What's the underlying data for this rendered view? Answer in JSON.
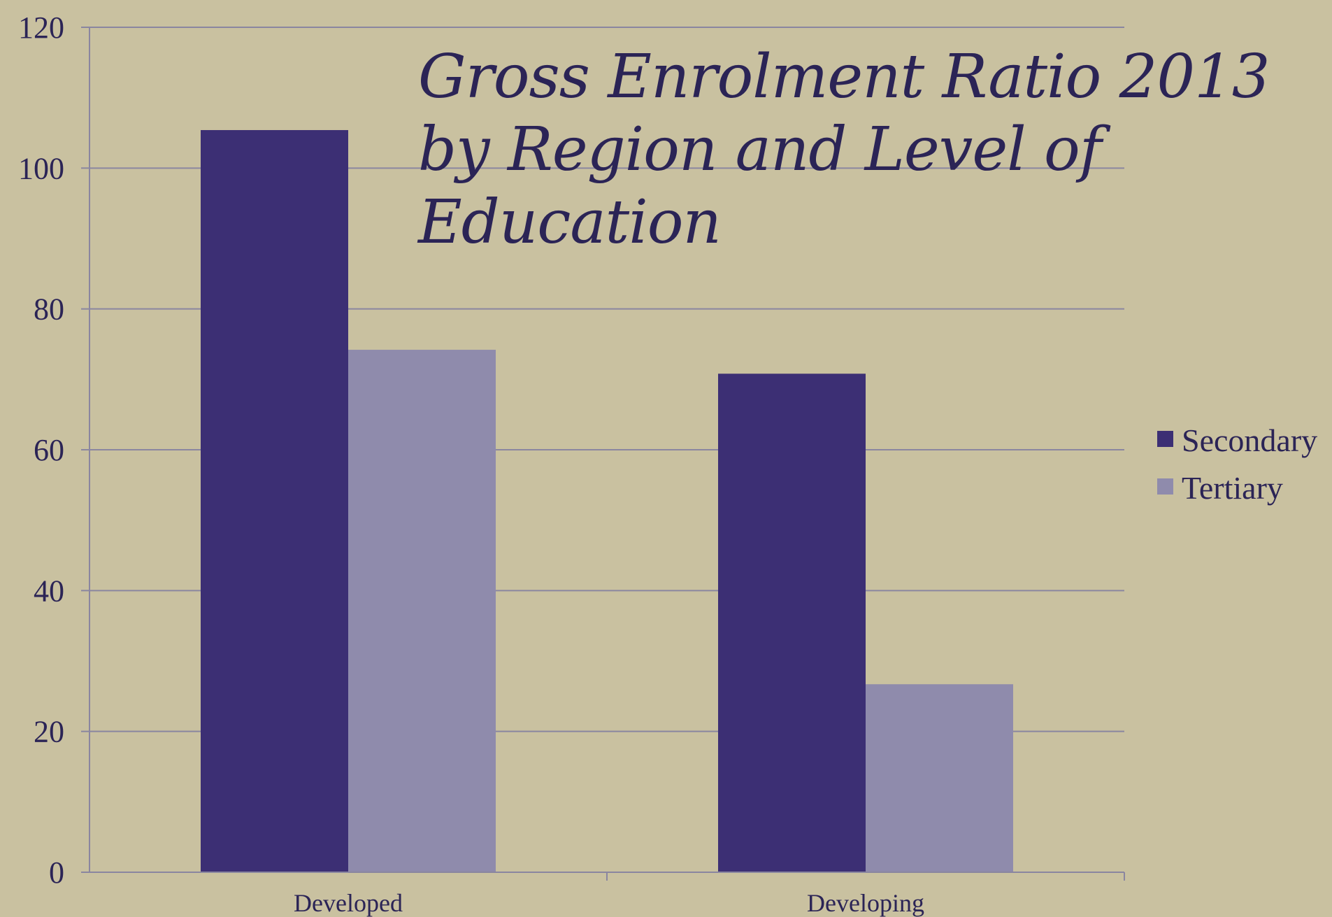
{
  "chart_data": {
    "type": "bar",
    "title": "Gross Enrolment Ratio 2013 by Region and Level of Education",
    "xlabel": "",
    "ylabel": "",
    "categories": [
      "Developed",
      "Developing"
    ],
    "series": [
      {
        "name": "Secondary",
        "values": [
          105.4,
          70.8
        ],
        "color": "#3c2f74"
      },
      {
        "name": "Tertiary",
        "values": [
          74.2,
          26.7
        ],
        "color": "#8f8bac"
      }
    ],
    "ylim": [
      0,
      120
    ],
    "yticks": [
      0,
      20,
      40,
      60,
      80,
      100,
      120
    ],
    "grid": true,
    "legend_position": "right",
    "background_color": "#c9c1a0",
    "grid_color": "#8a86a0",
    "text_color": "#2b2456"
  }
}
